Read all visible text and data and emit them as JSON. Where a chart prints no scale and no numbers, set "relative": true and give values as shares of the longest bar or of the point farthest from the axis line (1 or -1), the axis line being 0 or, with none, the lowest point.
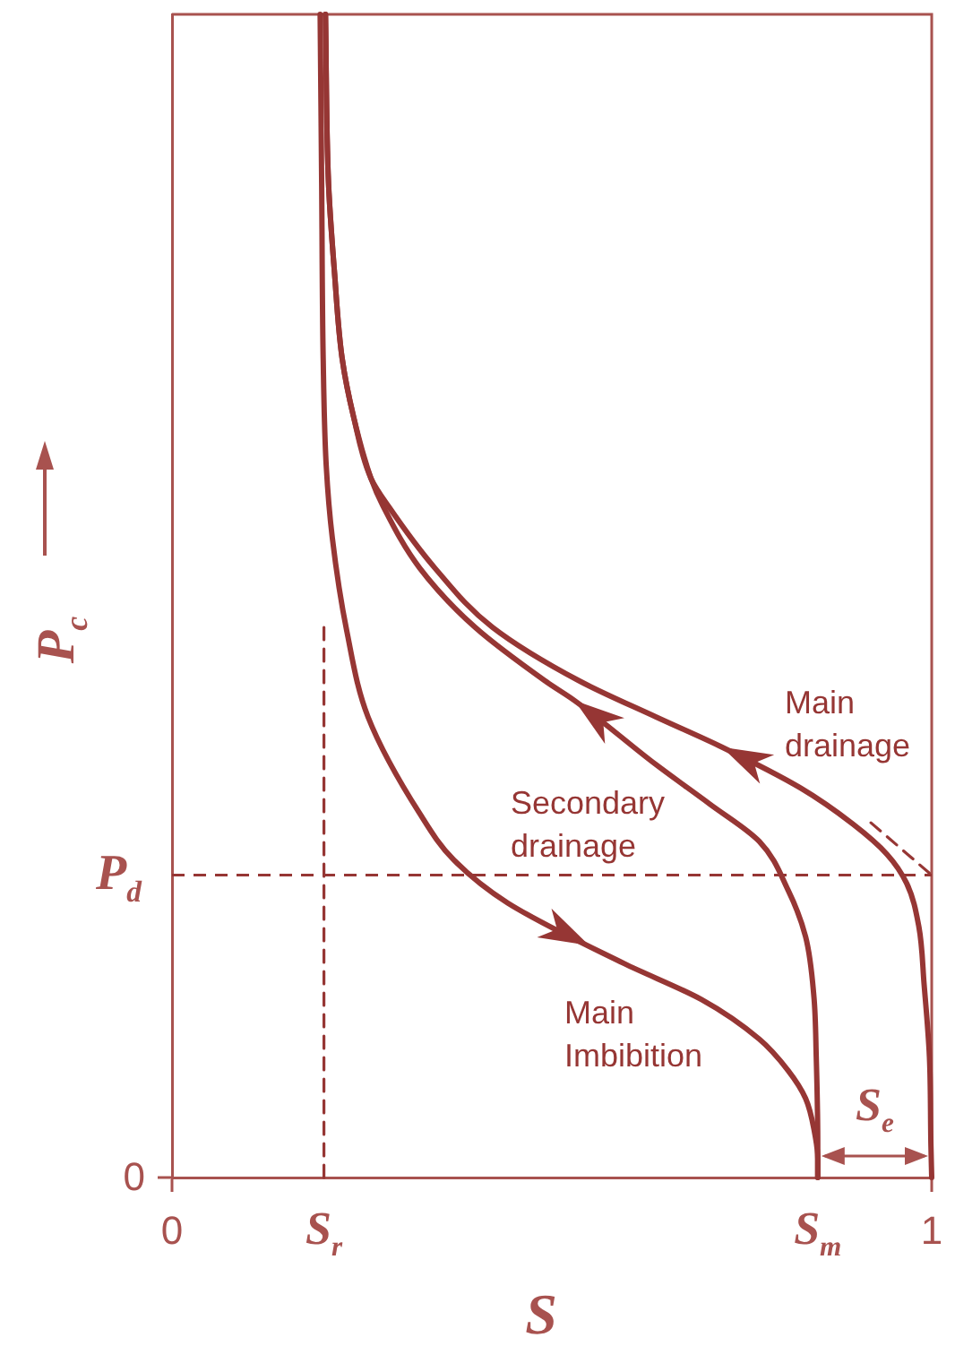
{
  "chart_data": {
    "type": "line",
    "xlabel": "S",
    "ylabel": "P$_{c}$",
    "relative": true,
    "xlim": [
      0,
      1
    ],
    "xticks": [
      0,
      {
        "value": 0.2,
        "label": "S$_{r}$"
      },
      {
        "value": 0.85,
        "label": "S$_{m}$"
      },
      1
    ],
    "series": [
      {
        "name": "Main drainage",
        "color": "#963634",
        "x": [
          0.202,
          0.206,
          0.214,
          0.224,
          0.239,
          0.262,
          0.285,
          0.346,
          0.422,
          0.536,
          0.637,
          0.724,
          0.827,
          0.896,
          0.941,
          0.967,
          0.983,
          0.99,
          0.997,
          0.999,
          1
        ],
        "values": [
          1,
          0.855,
          0.777,
          0.704,
          0.654,
          0.601,
          0.577,
          0.524,
          0.473,
          0.427,
          0.396,
          0.37,
          0.335,
          0.304,
          0.278,
          0.253,
          0.216,
          0.166,
          0.104,
          0.027,
          0
        ]
      },
      {
        "name": "Secondary drainage",
        "color": "#963634",
        "x": [
          0.202,
          0.206,
          0.214,
          0.224,
          0.239,
          0.262,
          0.278,
          0.326,
          0.399,
          0.491,
          0.53,
          0.637,
          0.708,
          0.773,
          0.811,
          0.834,
          0.845,
          0.848,
          0.85,
          0.85
        ],
        "values": [
          1,
          0.855,
          0.777,
          0.704,
          0.654,
          0.601,
          0.577,
          0.524,
          0.473,
          0.427,
          0.41,
          0.355,
          0.321,
          0.289,
          0.247,
          0.207,
          0.155,
          0.104,
          0.03,
          0
        ]
      },
      {
        "name": "Main Imbibition",
        "color": "#963634",
        "x": [
          0.195,
          0.197,
          0.199,
          0.203,
          0.211,
          0.23,
          0.258,
          0.326,
          0.371,
          0.442,
          0.595,
          0.697,
          0.773,
          0.811,
          0.834,
          0.846,
          0.85,
          0.85
        ],
        "values": [
          1,
          0.855,
          0.704,
          0.612,
          0.55,
          0.47,
          0.396,
          0.313,
          0.273,
          0.236,
          0.184,
          0.153,
          0.119,
          0.092,
          0.068,
          0.038,
          0.016,
          0
        ]
      },
      {
        "color": "#963634",
        "x": [
          0.92,
          1
        ],
        "values": [
          0.305,
          0.26
        ],
        "line_style": "dashed"
      },
      {
        "color": "#963634",
        "x": [
          0.2,
          0.2
        ],
        "values": [
          0,
          0.48
        ],
        "line_style": "dashed"
      }
    ],
    "ref_lines": [
      {
        "axis": "y",
        "value": 0.26,
        "label": "P$_{d}$",
        "color": "#963634",
        "line_style": "dashed"
      }
    ],
    "annotations": [
      "S$_{e}$",
      "0"
    ],
    "grid": false,
    "legend": false,
    "marker": "none",
    "line_style": "solid"
  }
}
